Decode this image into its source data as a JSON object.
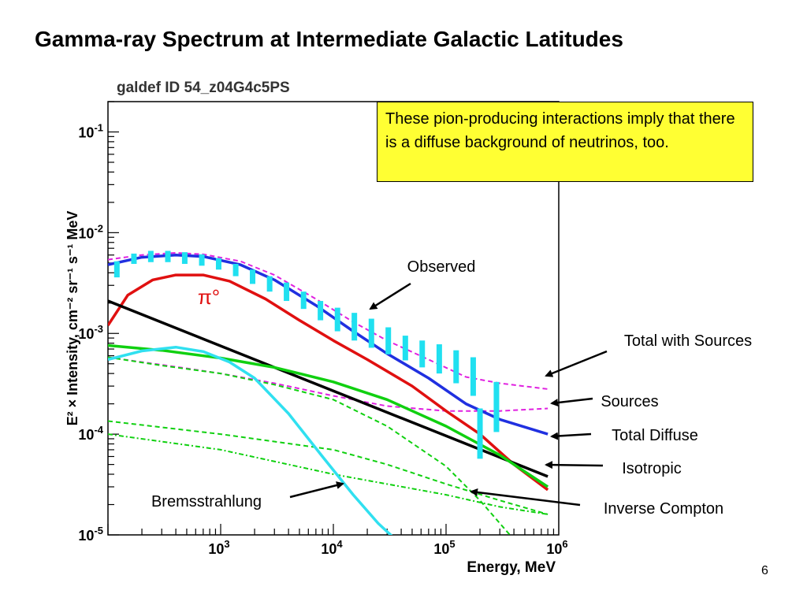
{
  "slide": {
    "title": "Gamma-ray Spectrum at Intermediate Galactic Latitudes",
    "page_number": "6",
    "callout_text": "These pion-producing interactions imply that there is a diffuse background of neutrinos, too."
  },
  "chart_data": {
    "type": "line",
    "title": "galdef ID 54_z04G4c5PS",
    "xlabel": "Energy, MeV",
    "ylabel": "E² × Intensity, cm⁻² sr⁻¹ s⁻¹ MeV",
    "x_scale": "log",
    "y_scale": "log",
    "xlim": [
      100,
      1000000
    ],
    "ylim": [
      1e-05,
      0.2
    ],
    "x_ticks": [
      {
        "value": 1000,
        "base": "10",
        "exp": "3"
      },
      {
        "value": 10000,
        "base": "10",
        "exp": "4"
      },
      {
        "value": 100000,
        "base": "10",
        "exp": "5"
      },
      {
        "value": 1000000,
        "base": "10",
        "exp": "6"
      }
    ],
    "y_ticks": [
      {
        "value": 1e-05,
        "base": "10",
        "exp": "-5"
      },
      {
        "value": 0.0001,
        "base": "10",
        "exp": "-4"
      },
      {
        "value": 0.001,
        "base": "10",
        "exp": "-3"
      },
      {
        "value": 0.01,
        "base": "10",
        "exp": "-2"
      },
      {
        "value": 0.1,
        "base": "10",
        "exp": "-1"
      }
    ],
    "grid": false,
    "series": [
      {
        "name": "Total with Sources",
        "color": "#e020e0",
        "style": "dashed",
        "x": [
          100,
          200,
          400,
          700,
          1500,
          3000,
          7000,
          15000,
          30000,
          70000,
          150000,
          300000,
          800000
        ],
        "y": [
          0.0054,
          0.006,
          0.0063,
          0.0061,
          0.0052,
          0.0038,
          0.0022,
          0.0013,
          0.00085,
          0.00055,
          0.00037,
          0.00032,
          0.00028
        ]
      },
      {
        "name": "Sources",
        "color": "#e020e0",
        "style": "dashed",
        "x": [
          100,
          200,
          500,
          1000,
          3000,
          10000,
          30000,
          100000,
          300000,
          800000
        ],
        "y": [
          0.00058,
          0.00052,
          0.00045,
          0.0004,
          0.00032,
          0.00024,
          0.00019,
          0.00017,
          0.00017,
          0.00018
        ]
      },
      {
        "name": "Total Diffuse",
        "color": "#2030e0",
        "style": "solid",
        "x": [
          100,
          200,
          400,
          700,
          1500,
          3000,
          7000,
          15000,
          30000,
          70000,
          150000,
          300000,
          800000
        ],
        "y": [
          0.0048,
          0.0057,
          0.006,
          0.0058,
          0.0048,
          0.0034,
          0.0019,
          0.00105,
          0.00063,
          0.00036,
          0.0002,
          0.00014,
          0.0001
        ]
      },
      {
        "name": "π°",
        "color": "#e01010",
        "style": "solid",
        "x": [
          100,
          150,
          250,
          400,
          700,
          1200,
          2500,
          5000,
          10000,
          20000,
          50000,
          100000,
          200000,
          400000,
          800000
        ],
        "y": [
          0.0012,
          0.0024,
          0.0034,
          0.0038,
          0.0038,
          0.0033,
          0.0022,
          0.00135,
          0.00085,
          0.00055,
          0.0003,
          0.00017,
          0.0001,
          5e-05,
          2.8e-05
        ]
      },
      {
        "name": "Isotropic",
        "color": "#000000",
        "style": "solid",
        "x": [
          100,
          800000
        ],
        "y": [
          0.0021,
          3.8e-05
        ]
      },
      {
        "name": "Inverse Compton",
        "color": "#10d010",
        "style": "solid",
        "x": [
          100,
          300,
          1000,
          3000,
          10000,
          30000,
          100000,
          300000,
          800000
        ],
        "y": [
          0.00076,
          0.00068,
          0.00057,
          0.00046,
          0.00033,
          0.00022,
          0.00012,
          6.2e-05,
          3e-05
        ]
      },
      {
        "name": "",
        "color": "#10d010",
        "style": "dashed",
        "x": [
          100,
          300,
          1000,
          3000,
          10000,
          30000,
          100000,
          200000,
          400000
        ],
        "y": [
          0.00058,
          0.00048,
          0.0004,
          0.00031,
          0.00022,
          0.00012,
          4.8e-05,
          2.2e-05,
          9e-06
        ]
      },
      {
        "name": "",
        "color": "#10d010",
        "style": "dashed",
        "x": [
          100,
          1000,
          10000,
          30000,
          100000,
          300000,
          800000
        ],
        "y": [
          0.000135,
          0.0001,
          7e-05,
          5e-05,
          3.2e-05,
          2.2e-05,
          1.6e-05
        ]
      },
      {
        "name": "",
        "color": "#10d010",
        "style": "dash-dot",
        "x": [
          100,
          1000,
          10000,
          100000,
          300000,
          800000
        ],
        "y": [
          0.0001,
          7e-05,
          4e-05,
          2.5e-05,
          1.9e-05,
          1.6e-05
        ]
      },
      {
        "name": "Bremsstrahlung",
        "color": "#30e0f0",
        "style": "solid",
        "x": [
          100,
          200,
          400,
          700,
          1200,
          2000,
          4000,
          8000,
          15000,
          25000,
          40000
        ],
        "y": [
          0.00055,
          0.00067,
          0.00073,
          0.00066,
          0.00052,
          0.00036,
          0.00016,
          6e-05,
          2.5e-05,
          1.3e-05,
          8e-06
        ]
      }
    ],
    "observed": {
      "name": "Observed",
      "color": "#20e0f0",
      "x": [
        120,
        170,
        240,
        340,
        480,
        680,
        960,
        1360,
        1920,
        2720,
        3840,
        5440,
        7680,
        10880,
        15360,
        21760,
        30720,
        43520,
        61440,
        87040,
        122880,
        174080,
        200000,
        280000
      ],
      "y_low": [
        0.0036,
        0.0049,
        0.0051,
        0.0051,
        0.0049,
        0.0047,
        0.0043,
        0.0037,
        0.0031,
        0.0026,
        0.0021,
        0.00175,
        0.00135,
        0.00105,
        0.00085,
        0.00072,
        0.00062,
        0.00054,
        0.00046,
        0.0004,
        0.00032,
        0.00024,
        5.7e-05,
        0.000105
      ],
      "y_high": [
        0.0052,
        0.0062,
        0.0066,
        0.0066,
        0.0064,
        0.0061,
        0.0056,
        0.0049,
        0.0043,
        0.0037,
        0.0032,
        0.0026,
        0.0021,
        0.0018,
        0.0016,
        0.0014,
        0.00115,
        0.00095,
        0.00085,
        0.00078,
        0.00068,
        0.00058,
        0.00018,
        0.00033
      ]
    },
    "annotations": [
      {
        "text": "Observed",
        "target_series": "Observed"
      },
      {
        "text": "π°",
        "target_series": "π°"
      },
      {
        "text": "Total with Sources",
        "target_series": "Total with Sources"
      },
      {
        "text": "Sources",
        "target_series": "Sources"
      },
      {
        "text": "Total Diffuse",
        "target_series": "Total Diffuse"
      },
      {
        "text": "Isotropic",
        "target_series": "Isotropic"
      },
      {
        "text": "Inverse Compton",
        "target_series": "Inverse Compton"
      },
      {
        "text": "Bremsstrahlung",
        "target_series": "Bremsstrahlung"
      }
    ]
  }
}
